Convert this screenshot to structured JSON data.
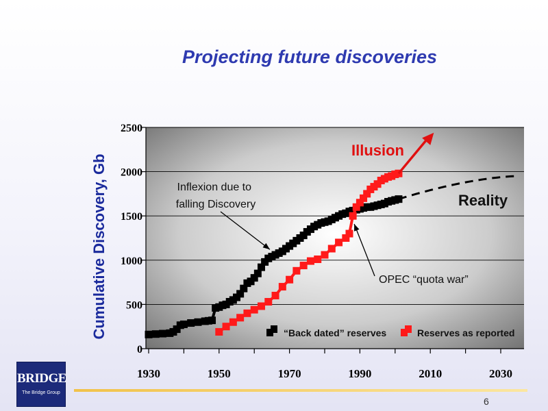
{
  "slide": {
    "title": "Projecting future discoveries",
    "page_number": "6",
    "logo": {
      "text": "BRIDGE",
      "subtext": "The Bridge Group"
    }
  },
  "colors": {
    "title": "#2e3ab0",
    "back_dated": "#000000",
    "reported": "#ff1a1a",
    "illusion": "#e01010",
    "logo_bg": "#1c2a7a"
  },
  "chart_data": {
    "type": "line",
    "title": "",
    "xlabel": "",
    "ylabel": "Cumulative Discovery, Gb",
    "xlim": [
      1930,
      2035
    ],
    "ylim": [
      0,
      2500
    ],
    "x_ticks": [
      1930,
      1950,
      1970,
      1990,
      2010,
      2030
    ],
    "y_ticks": [
      0,
      500,
      1000,
      1500,
      2000,
      2500
    ],
    "grid": "horizontal",
    "legend_position": "bottom-right",
    "series": [
      {
        "name": "“Back dated” reserves",
        "marker": "square",
        "color": "#000000",
        "x": [
          1930,
          1932,
          1934,
          1936,
          1937,
          1938,
          1939,
          1940,
          1942,
          1944,
          1946,
          1947,
          1948,
          1949,
          1950,
          1951,
          1952,
          1953,
          1954,
          1955,
          1956,
          1957,
          1958,
          1959,
          1960,
          1961,
          1962,
          1963,
          1964,
          1965,
          1966,
          1967,
          1968,
          1969,
          1970,
          1971,
          1972,
          1973,
          1974,
          1975,
          1976,
          1977,
          1978,
          1979,
          1980,
          1981,
          1982,
          1983,
          1984,
          1985,
          1986,
          1987,
          1988,
          1989,
          1990,
          1991,
          1992,
          1993,
          1994,
          1995,
          1996,
          1997,
          1998,
          1999,
          2000,
          2001
        ],
        "y": [
          160,
          165,
          170,
          175,
          190,
          220,
          265,
          275,
          290,
          300,
          310,
          315,
          320,
          460,
          470,
          490,
          500,
          530,
          550,
          580,
          620,
          680,
          740,
          760,
          800,
          850,
          920,
          980,
          1020,
          1040,
          1060,
          1080,
          1100,
          1130,
          1160,
          1190,
          1220,
          1250,
          1280,
          1320,
          1350,
          1380,
          1400,
          1420,
          1430,
          1440,
          1460,
          1480,
          1500,
          1520,
          1530,
          1550,
          1560,
          1570,
          1580,
          1590,
          1600,
          1600,
          1610,
          1620,
          1630,
          1640,
          1660,
          1670,
          1680,
          1690
        ]
      },
      {
        "name": "Reserves as reported",
        "marker": "square",
        "color": "#ff1a1a",
        "x": [
          1950,
          1952,
          1954,
          1956,
          1958,
          1960,
          1962,
          1964,
          1966,
          1968,
          1970,
          1972,
          1974,
          1976,
          1978,
          1980,
          1982,
          1984,
          1986,
          1987,
          1988,
          1989,
          1990,
          1991,
          1992,
          1993,
          1994,
          1995,
          1996,
          1997,
          1998,
          1999,
          2000,
          2001
        ],
        "y": [
          190,
          250,
          300,
          350,
          400,
          440,
          480,
          530,
          600,
          700,
          780,
          880,
          940,
          990,
          1010,
          1060,
          1130,
          1200,
          1250,
          1300,
          1500,
          1600,
          1650,
          1700,
          1750,
          1800,
          1830,
          1860,
          1900,
          1920,
          1940,
          1950,
          1970,
          1980
        ]
      }
    ],
    "projections": [
      {
        "name": "Illusion",
        "style": "solid-arrow",
        "color": "#e01010",
        "x": [
          2001,
          2011
        ],
        "y": [
          1980,
          2440
        ]
      },
      {
        "name": "Reality",
        "style": "dashed",
        "color": "#000000",
        "x": [
          2001,
          2035
        ],
        "y": [
          1690,
          1950
        ]
      }
    ],
    "annotations": [
      {
        "text_lines": [
          "Inflexion due to",
          "falling Discovery"
        ],
        "points_to": [
          1965,
          1090
        ]
      },
      {
        "text_lines": [
          "OPEC “quota war”"
        ],
        "points_to": [
          1988,
          1440
        ]
      }
    ],
    "labels": {
      "illusion": "Illusion",
      "reality": "Reality"
    }
  }
}
